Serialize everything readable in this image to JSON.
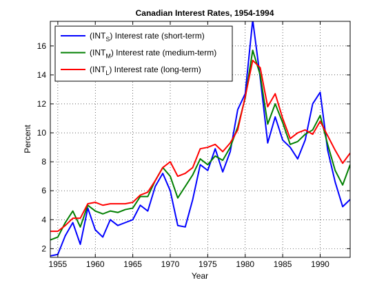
{
  "chart_data": {
    "type": "line",
    "title": "Canadian Interest Rates, 1954-1994",
    "xlabel": "Year",
    "ylabel": "Percent",
    "xlim": [
      1954,
      1994
    ],
    "ylim": [
      1.4,
      17.7
    ],
    "xticks": [
      1955,
      1960,
      1965,
      1970,
      1975,
      1980,
      1985,
      1990
    ],
    "yticks": [
      2,
      4,
      6,
      8,
      10,
      12,
      14,
      16
    ],
    "grid": true,
    "legend_position": "top-left",
    "x": [
      1954,
      1955,
      1956,
      1957,
      1958,
      1959,
      1960,
      1961,
      1962,
      1963,
      1964,
      1965,
      1966,
      1967,
      1968,
      1969,
      1970,
      1971,
      1972,
      1973,
      1974,
      1975,
      1976,
      1977,
      1978,
      1979,
      1980,
      1981,
      1982,
      1983,
      1984,
      1985,
      1986,
      1987,
      1988,
      1989,
      1990,
      1991,
      1992,
      1993,
      1994
    ],
    "series": [
      {
        "name_prefix": "(INT",
        "name_sub": "S",
        "name_suffix": ") Interest rate (short-term)",
        "color": "#0000ff",
        "values": [
          1.5,
          1.6,
          2.9,
          3.8,
          2.3,
          4.8,
          3.3,
          2.8,
          4.0,
          3.6,
          3.8,
          4.0,
          5.0,
          4.6,
          6.3,
          7.2,
          6.0,
          3.6,
          3.5,
          5.4,
          7.8,
          7.4,
          8.9,
          7.3,
          8.7,
          11.6,
          12.7,
          17.8,
          13.8,
          9.3,
          11.1,
          9.5,
          9.0,
          8.2,
          9.5,
          12.0,
          12.8,
          8.8,
          6.6,
          4.9,
          5.4
        ]
      },
      {
        "name_prefix": "(INT",
        "name_sub": "M",
        "name_suffix": ") Interest rate (medium-term)",
        "color": "#007f00",
        "values": [
          2.6,
          2.8,
          3.8,
          4.6,
          3.5,
          5.0,
          4.6,
          4.4,
          4.6,
          4.5,
          4.7,
          4.8,
          5.6,
          5.6,
          6.7,
          7.6,
          7.0,
          5.5,
          6.3,
          7.1,
          8.2,
          7.8,
          8.4,
          8.1,
          9.0,
          10.4,
          12.4,
          15.7,
          14.0,
          10.6,
          12.0,
          10.7,
          9.2,
          9.4,
          9.9,
          10.2,
          11.2,
          9.2,
          7.4,
          6.4,
          7.8
        ]
      },
      {
        "name_prefix": "(INT",
        "name_sub": "L",
        "name_suffix": ") Interest rate (long-term)",
        "color": "#ff0000",
        "values": [
          3.2,
          3.2,
          3.6,
          4.1,
          4.1,
          5.1,
          5.2,
          5.0,
          5.1,
          5.1,
          5.1,
          5.2,
          5.7,
          5.9,
          6.7,
          7.6,
          8.0,
          7.0,
          7.2,
          7.6,
          8.9,
          9.0,
          9.2,
          8.7,
          9.3,
          10.2,
          12.5,
          15.0,
          14.5,
          11.8,
          12.7,
          11.0,
          9.6,
          10.0,
          10.2,
          9.9,
          10.8,
          9.8,
          8.8,
          7.9,
          8.6
        ]
      }
    ]
  }
}
